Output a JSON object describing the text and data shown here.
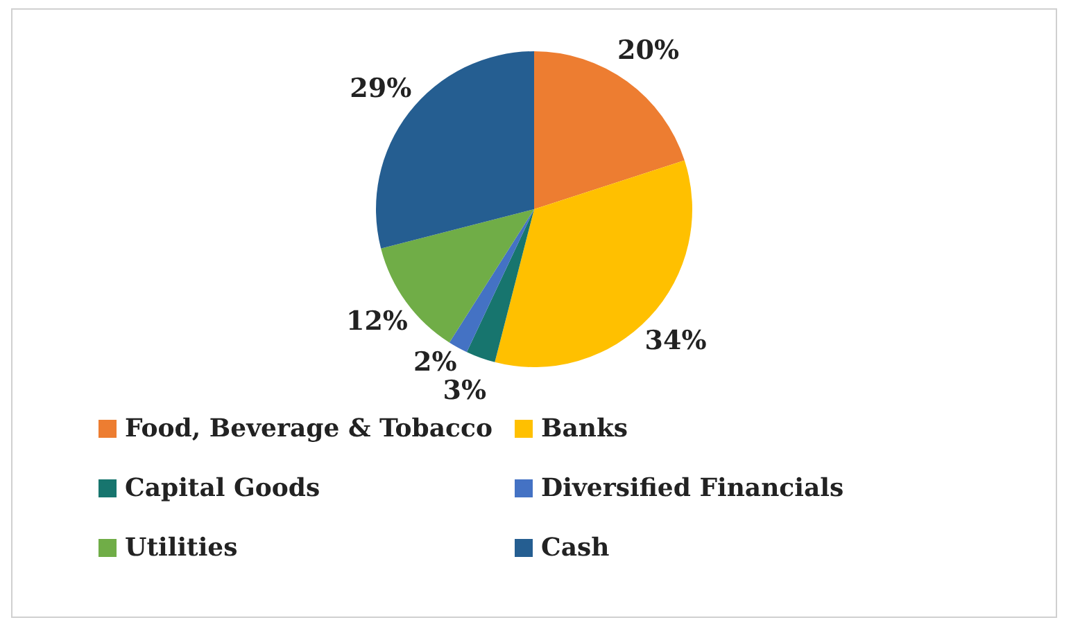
{
  "chart_data": {
    "type": "pie",
    "categories": [
      "Food, Beverage & Tobacco",
      "Banks",
      "Capital Goods",
      "Diversified Financials",
      "Utilities",
      "Cash"
    ],
    "values": [
      20,
      34,
      3,
      2,
      12,
      29
    ],
    "colors": [
      "#ed7d31",
      "#ffc000",
      "#17756e",
      "#4472c4",
      "#70ad47",
      "#255e91"
    ],
    "value_labels": [
      "20%",
      "34%",
      "3%",
      "2%",
      "12%",
      "29%"
    ],
    "legend": "bottom"
  }
}
